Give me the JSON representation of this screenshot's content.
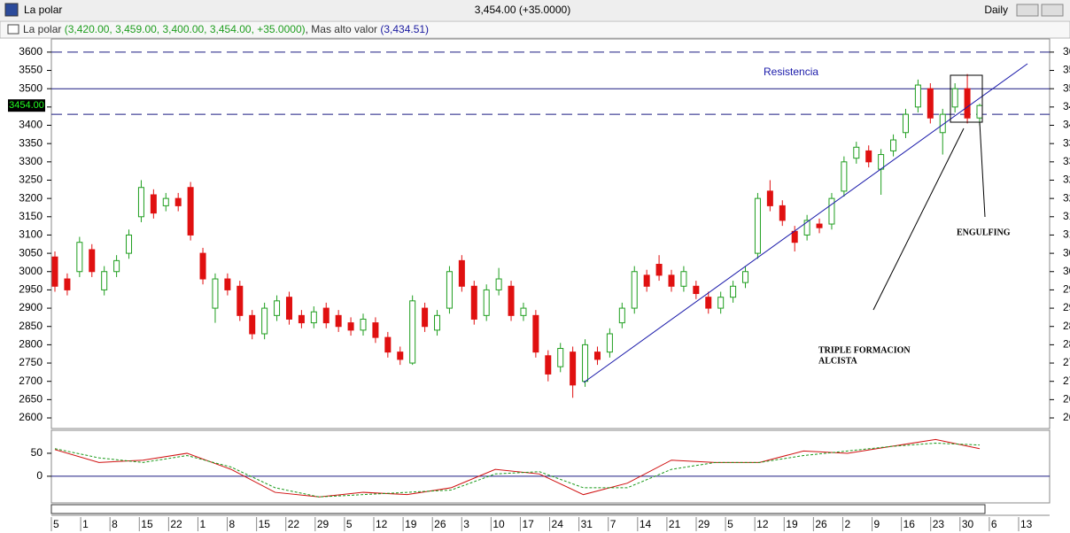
{
  "window": {
    "title": "La polar",
    "quote": "3,454.00 (+35.0000)",
    "period": "Daily",
    "legend_name": "La polar",
    "legend_values": "(3,420.00, 3,459.00, 3,400.00, 3,454.00, +35.0000)",
    "indicator": ", Mas  alto valor",
    "indicator_value": "(3,434.51)"
  },
  "chart_data": [
    {
      "type": "candlestick",
      "open": [
        3040,
        2980,
        3000,
        3060,
        2950,
        3000,
        3050,
        3150,
        3210,
        3180,
        3200,
        3230,
        3050,
        2900,
        2980,
        2960,
        2880,
        2830,
        2880,
        2930,
        2880,
        2860,
        2900,
        2880,
        2860,
        2840,
        2860,
        2820,
        2780,
        2750,
        2900,
        2840,
        2900,
        3030,
        2960,
        2880,
        2950,
        2960,
        2880,
        2880,
        2770,
        2740,
        2780,
        2700,
        2780,
        2780,
        2860,
        2900,
        2990,
        3020,
        2990,
        2960,
        2960,
        2930,
        2900,
        2930,
        2970,
        3050,
        3220,
        3180,
        3110,
        3100,
        3130,
        3130,
        3220,
        3310,
        3330,
        3280,
        3330,
        3380,
        3450,
        3500,
        3380,
        3450,
        3500,
        3420
      ],
      "high": [
        3055,
        2995,
        3095,
        3075,
        3015,
        3045,
        3115,
        3250,
        3225,
        3215,
        3215,
        3245,
        3065,
        2995,
        2995,
        2975,
        2895,
        2915,
        2935,
        2945,
        2895,
        2905,
        2915,
        2895,
        2875,
        2885,
        2875,
        2835,
        2795,
        2935,
        2915,
        2895,
        3015,
        3045,
        2975,
        2965,
        3010,
        2975,
        2915,
        2895,
        2785,
        2805,
        2795,
        2815,
        2795,
        2845,
        2915,
        3015,
        3005,
        3045,
        3005,
        3015,
        2975,
        2945,
        2945,
        2975,
        3015,
        3215,
        3250,
        3195,
        3125,
        3155,
        3145,
        3215,
        3315,
        3355,
        3345,
        3335,
        3375,
        3445,
        3525,
        3515,
        3445,
        3515,
        3540,
        3459
      ],
      "low": [
        2945,
        2935,
        2985,
        2985,
        2935,
        2985,
        3035,
        3135,
        3145,
        3165,
        3165,
        3085,
        2965,
        2860,
        2935,
        2865,
        2815,
        2815,
        2865,
        2855,
        2845,
        2845,
        2845,
        2835,
        2825,
        2825,
        2805,
        2765,
        2745,
        2745,
        2835,
        2825,
        2885,
        2945,
        2855,
        2865,
        2935,
        2865,
        2865,
        2765,
        2700,
        2725,
        2655,
        2685,
        2745,
        2765,
        2845,
        2885,
        2945,
        2975,
        2945,
        2945,
        2925,
        2885,
        2885,
        2915,
        2955,
        3035,
        3165,
        3125,
        3055,
        3085,
        3105,
        3115,
        3205,
        3295,
        3285,
        3210,
        3315,
        3365,
        3435,
        3405,
        3320,
        3435,
        3405,
        3400
      ],
      "close": [
        2960,
        2950,
        3080,
        3000,
        3000,
        3030,
        3100,
        3230,
        3160,
        3200,
        3180,
        3100,
        2980,
        2980,
        2950,
        2880,
        2830,
        2900,
        2920,
        2870,
        2860,
        2890,
        2860,
        2850,
        2840,
        2870,
        2820,
        2780,
        2760,
        2920,
        2850,
        2880,
        3000,
        2960,
        2870,
        2950,
        2980,
        2880,
        2900,
        2780,
        2720,
        2790,
        2690,
        2800,
        2760,
        2830,
        2900,
        3000,
        2960,
        2990,
        2960,
        3000,
        2940,
        2900,
        2930,
        2960,
        3000,
        3200,
        3180,
        3140,
        3080,
        3140,
        3120,
        3200,
        3300,
        3340,
        3300,
        3320,
        3360,
        3430,
        3510,
        3420,
        3430,
        3500,
        3420,
        3454
      ],
      "up_color": "#1f9e1f",
      "down_color": "#e01010",
      "ylim": [
        2571,
        3636
      ],
      "yticks": [
        2600,
        2650,
        2700,
        2750,
        2800,
        2850,
        2900,
        2950,
        3000,
        3050,
        3100,
        3150,
        3200,
        3250,
        3300,
        3350,
        3400,
        3450,
        3500,
        3550,
        3600
      ],
      "levels": [
        {
          "value": 3600,
          "style": "dashed"
        },
        {
          "value": 3500,
          "style": "solid"
        },
        {
          "value": 3430,
          "style": "dashed"
        }
      ],
      "price_tag": {
        "value": 3454,
        "label": "3454.00"
      },
      "annotations": [
        "Resistencia",
        "ENGULFING",
        "TRIPLE FORMACION",
        "ALCISTA"
      ],
      "date_labels": [
        "5",
        "1",
        "8",
        "15",
        "22",
        "1",
        "8",
        "15",
        "22",
        "29",
        "5",
        "12",
        "19",
        "26",
        "3",
        "10",
        "17",
        "24",
        "31",
        "7",
        "14",
        "21",
        "29",
        "5",
        "12",
        "19",
        "26",
        "2",
        "9",
        "16",
        "23",
        "30",
        "6",
        "13"
      ]
    },
    {
      "type": "line",
      "series": [
        {
          "color": "#d01010",
          "style": "solid",
          "values": [
            58,
            30,
            35,
            50,
            15,
            -35,
            -45,
            -35,
            -40,
            -25,
            15,
            5,
            -40,
            -15,
            35,
            30,
            30,
            55,
            50,
            65,
            80,
            60
          ]
        },
        {
          "color": "#1a9a1a",
          "style": "dashed",
          "values": [
            60,
            40,
            30,
            45,
            20,
            -25,
            -45,
            -40,
            -35,
            -30,
            5,
            10,
            -25,
            -25,
            15,
            30,
            30,
            45,
            55,
            65,
            72,
            68
          ]
        }
      ],
      "ylim": [
        -58,
        100
      ],
      "yticks": [
        0,
        50
      ]
    }
  ]
}
